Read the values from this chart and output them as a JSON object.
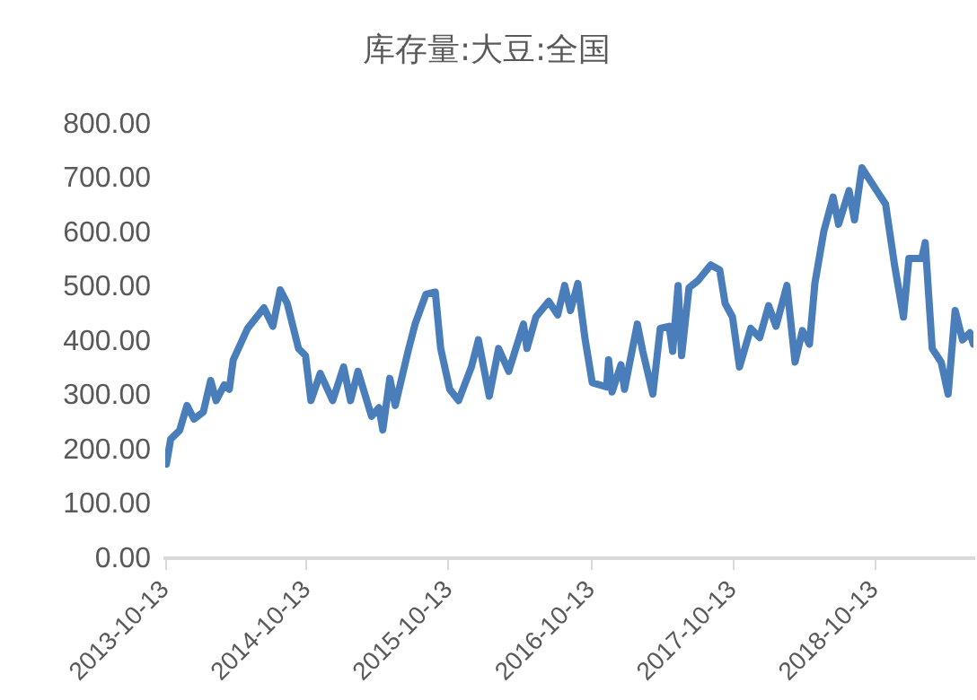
{
  "chart_data": {
    "type": "line",
    "title": "库存量:大豆:全国",
    "x": [
      "2013-10-16",
      "2013-10-27",
      "2013-11-19",
      "2013-12-08",
      "2013-12-26",
      "2014-01-19",
      "2014-02-07",
      "2014-02-21",
      "2014-03-14",
      "2014-03-27",
      "2014-04-06",
      "2014-05-13",
      "2014-06-24",
      "2014-07-17",
      "2014-08-05",
      "2014-08-23",
      "2014-09-21",
      "2014-10-09",
      "2014-10-23",
      "2014-11-16",
      "2014-12-18",
      "2015-01-15",
      "2015-02-02",
      "2015-02-21",
      "2015-03-28",
      "2015-04-16",
      "2015-04-26",
      "2015-05-14",
      "2015-05-28",
      "2015-06-30",
      "2015-07-18",
      "2015-08-15",
      "2015-09-08",
      "2015-09-22",
      "2015-10-15",
      "2015-11-07",
      "2015-12-10",
      "2015-12-28",
      "2016-01-25",
      "2016-02-18",
      "2016-03-15",
      "2016-04-22",
      "2016-05-01",
      "2016-05-24",
      "2016-06-26",
      "2016-07-19",
      "2016-08-06",
      "2016-08-21",
      "2016-09-09",
      "2016-09-27",
      "2016-10-16",
      "2016-11-22",
      "2016-11-27",
      "2016-12-06",
      "2016-12-29",
      "2017-01-07",
      "2017-02-09",
      "2017-02-23",
      "2017-03-21",
      "2017-04-09",
      "2017-05-02",
      "2017-05-11",
      "2017-05-25",
      "2017-06-03",
      "2017-06-22",
      "2017-07-15",
      "2017-08-17",
      "2017-09-09",
      "2017-09-23",
      "2017-10-12",
      "2017-10-30",
      "2017-11-28",
      "2017-12-21",
      "2018-01-13",
      "2018-02-01",
      "2018-03-01",
      "2018-03-22",
      "2018-04-10",
      "2018-04-28",
      "2018-05-12",
      "2018-06-04",
      "2018-06-28",
      "2018-07-12",
      "2018-08-08",
      "2018-08-22",
      "2018-09-10",
      "2018-10-18",
      "2018-11-10",
      "2018-12-03",
      "2018-12-26",
      "2019-01-09",
      "2019-02-11",
      "2019-02-20",
      "2019-03-10",
      "2019-04-02",
      "2019-04-20",
      "2019-05-08",
      "2019-05-27",
      "2019-06-15",
      "2019-06-24"
    ],
    "series": [
      {
        "color": "#4a7ebb",
        "values": [
          175,
          221,
          237,
          283,
          258,
          271,
          329,
          292,
          321,
          313,
          367,
          425,
          463,
          429,
          496,
          471,
          388,
          375,
          292,
          342,
          292,
          354,
          292,
          346,
          263,
          279,
          238,
          333,
          283,
          383,
          433,
          488,
          492,
          388,
          313,
          292,
          354,
          404,
          300,
          388,
          346,
          433,
          388,
          446,
          475,
          450,
          504,
          458,
          508,
          408,
          325,
          317,
          367,
          308,
          358,
          313,
          433,
          383,
          304,
          425,
          429,
          383,
          504,
          375,
          500,
          513,
          542,
          533,
          471,
          446,
          354,
          425,
          408,
          467,
          429,
          504,
          363,
          421,
          396,
          508,
          604,
          667,
          617,
          679,
          625,
          721,
          679,
          654,
          542,
          446,
          554,
          554,
          583,
          388,
          363,
          304,
          458,
          404,
          417,
          396
        ]
      }
    ],
    "xlim": [
      "2013-10-13",
      "2019-06-24"
    ],
    "xticks": [
      "2013-10-13",
      "2014-10-13",
      "2015-10-13",
      "2016-10-13",
      "2017-10-13",
      "2018-10-13"
    ],
    "ylim": [
      0,
      800
    ],
    "yticks": [
      {
        "value": 0,
        "label": "0.00"
      },
      {
        "value": 100,
        "label": "100.00"
      },
      {
        "value": 200,
        "label": "200.00"
      },
      {
        "value": 300,
        "label": "300.00"
      },
      {
        "value": 400,
        "label": "400.00"
      },
      {
        "value": 500,
        "label": "500.00"
      },
      {
        "value": 600,
        "label": "600.00"
      },
      {
        "value": 700,
        "label": "700.00"
      },
      {
        "value": 800,
        "label": "800.00"
      }
    ],
    "grid": false,
    "legend": false,
    "marker": "none",
    "line_style": "solid"
  }
}
